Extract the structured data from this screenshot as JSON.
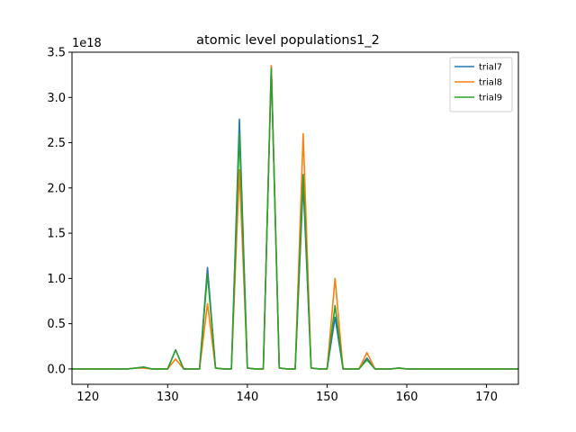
{
  "chart_data": {
    "type": "line",
    "title": "atomic level populations1_2",
    "xlabel": "",
    "ylabel": "",
    "y_offset_label": "1e18",
    "xlim": [
      118,
      174
    ],
    "ylim": [
      -0.17,
      3.5
    ],
    "x_ticks": [
      120,
      130,
      140,
      150,
      160,
      170
    ],
    "x_tick_labels": [
      "120",
      "130",
      "140",
      "150",
      "160",
      "170"
    ],
    "y_ticks": [
      0.0,
      0.5,
      1.0,
      1.5,
      2.0,
      2.5,
      3.0,
      3.5
    ],
    "y_tick_labels": [
      "0.0",
      "0.5",
      "1.0",
      "1.5",
      "2.0",
      "2.5",
      "3.0",
      "3.5"
    ],
    "grid": false,
    "legend_position": "top-right",
    "x": [
      118,
      119,
      120,
      121,
      122,
      123,
      124,
      125,
      126,
      127,
      128,
      129,
      130,
      131,
      132,
      133,
      134,
      135,
      136,
      137,
      138,
      139,
      140,
      141,
      142,
      143,
      144,
      145,
      146,
      147,
      148,
      149,
      150,
      151,
      152,
      153,
      154,
      155,
      156,
      157,
      158,
      159,
      160,
      161,
      162,
      163,
      164,
      165,
      166,
      167,
      168,
      169,
      170,
      171,
      172,
      173,
      174
    ],
    "series": [
      {
        "name": "trial7",
        "color": "#1f77b4",
        "values": [
          0,
          0,
          0,
          0,
          0,
          0,
          0,
          0,
          0.01,
          0.02,
          0,
          0,
          0,
          0.21,
          0,
          0,
          0,
          1.12,
          0.01,
          0,
          0,
          2.76,
          0.01,
          0,
          0,
          3.35,
          0.01,
          0,
          0,
          2.05,
          0.01,
          0,
          0,
          0.57,
          0,
          0,
          0,
          0.12,
          0,
          0,
          0,
          0.01,
          0,
          0,
          0,
          0,
          0,
          0,
          0,
          0,
          0,
          0,
          0,
          0,
          0,
          0,
          0
        ]
      },
      {
        "name": "trial8",
        "color": "#ff7f0e",
        "values": [
          0,
          0,
          0,
          0,
          0,
          0,
          0,
          0,
          0.01,
          0.01,
          0,
          0,
          0,
          0.11,
          0,
          0,
          0,
          0.72,
          0.01,
          0,
          0,
          2.2,
          0.01,
          0,
          0,
          3.35,
          0.01,
          0,
          0,
          2.6,
          0.01,
          0,
          0,
          1.0,
          0,
          0,
          0,
          0.18,
          0,
          0,
          0,
          0.01,
          0,
          0,
          0,
          0,
          0,
          0,
          0,
          0,
          0,
          0,
          0,
          0,
          0,
          0,
          0
        ]
      },
      {
        "name": "trial9",
        "color": "#2ca02c",
        "values": [
          0,
          0,
          0,
          0,
          0,
          0,
          0,
          0,
          0.01,
          0.02,
          0,
          0,
          0,
          0.21,
          0,
          0,
          0,
          1.05,
          0.01,
          0,
          0,
          2.6,
          0.01,
          0,
          0,
          3.32,
          0.01,
          0,
          0,
          2.15,
          0.01,
          0,
          0,
          0.7,
          0,
          0,
          0,
          0.1,
          0,
          0,
          0,
          0.01,
          0,
          0,
          0,
          0,
          0,
          0,
          0,
          0,
          0,
          0,
          0,
          0,
          0,
          0,
          0
        ]
      }
    ]
  }
}
